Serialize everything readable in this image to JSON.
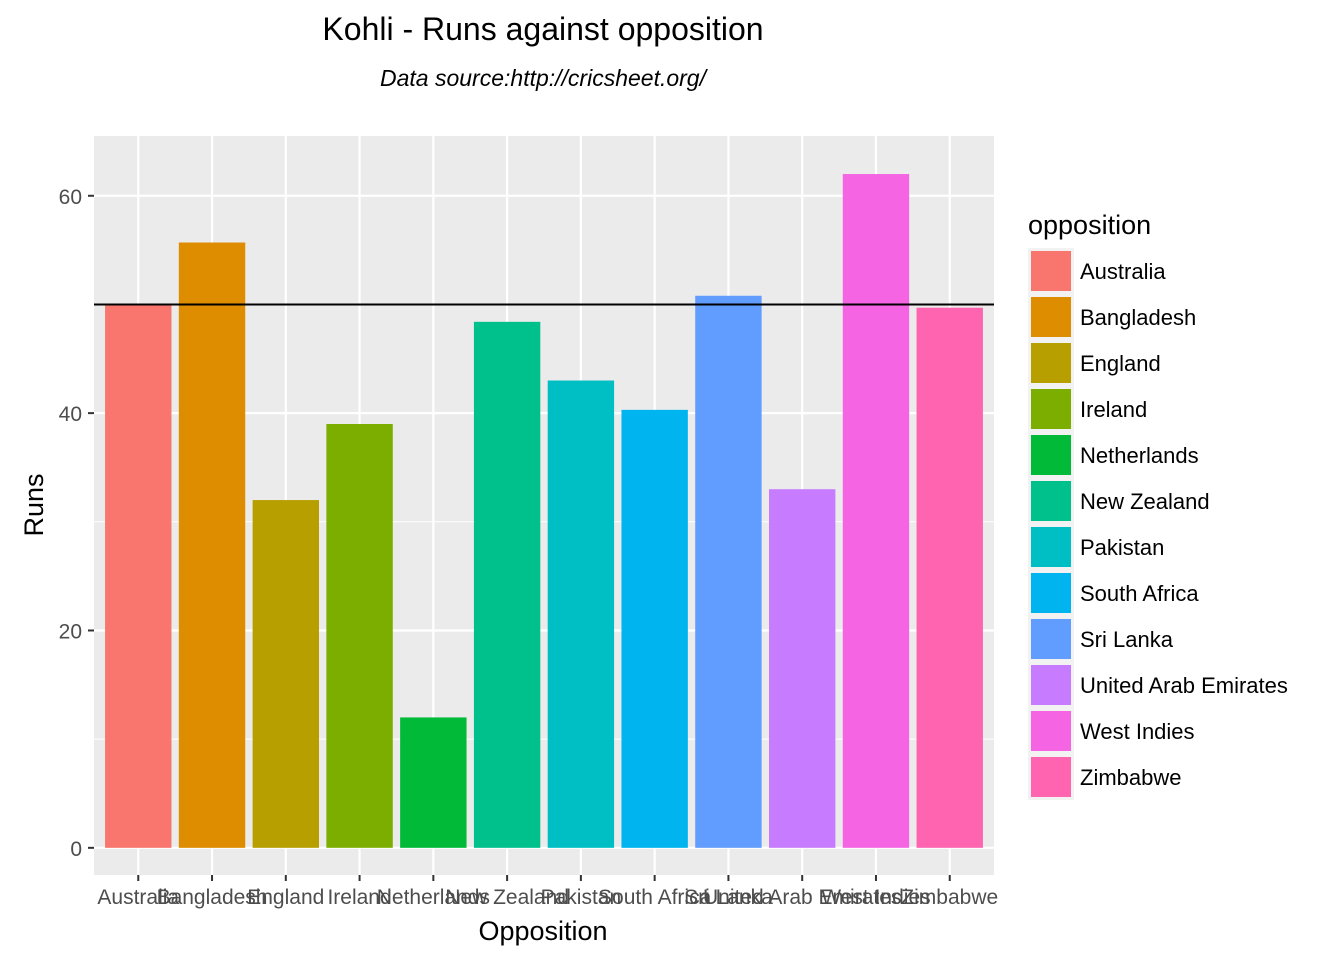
{
  "chart_data": {
    "type": "bar",
    "title": "Kohli - Runs against opposition",
    "subtitle": "Data source:http://cricsheet.org/",
    "xlabel": "Opposition",
    "ylabel": "Runs",
    "ylim": [
      -2.5,
      65.5
    ],
    "yticks": [
      0,
      20,
      40,
      60
    ],
    "grid": true,
    "legend_title": "opposition",
    "legend_position": "right",
    "reference_line": 50,
    "categories": [
      "Australia",
      "Bangladesh",
      "England",
      "Ireland",
      "Netherlands",
      "New Zealand",
      "Pakistan",
      "South Africa",
      "Sri Lanka",
      "United Arab Emirates",
      "West Indies",
      "Zimbabwe"
    ],
    "values": [
      50,
      55.7,
      32,
      39,
      12,
      48.4,
      43,
      40.3,
      50.8,
      33,
      62,
      49.7
    ],
    "colors": [
      "#F8766D",
      "#DE8C00",
      "#B79F00",
      "#7CAE00",
      "#00BA38",
      "#00C08B",
      "#00BFC4",
      "#00B4F0",
      "#619CFF",
      "#C77CFF",
      "#F564E3",
      "#FF64B0"
    ]
  }
}
